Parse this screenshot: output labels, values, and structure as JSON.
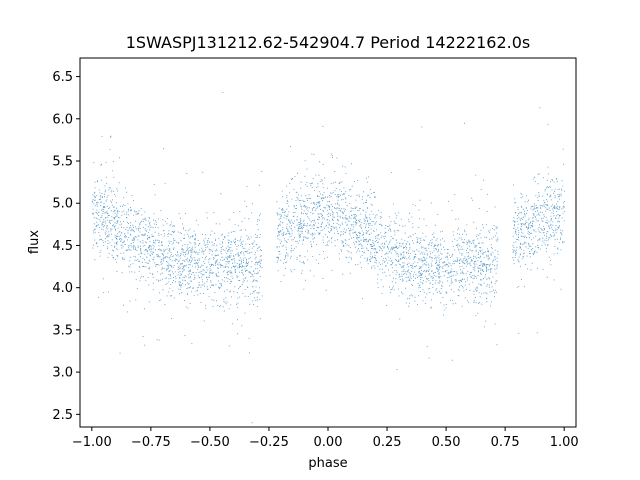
{
  "chart_data": {
    "type": "scatter",
    "title": "1SWASPJ131212.62-542904.7 Period 14222162.0s",
    "xlabel": "phase",
    "ylabel": "flux",
    "xlim": [
      -1.05,
      1.05
    ],
    "ylim": [
      2.35,
      6.72
    ],
    "xticks": [
      "-1.00",
      "-0.75",
      "-0.50",
      "-0.25",
      "0.00",
      "0.25",
      "0.50",
      "0.75",
      "1.00"
    ],
    "yticks": [
      "2.5",
      "3.0",
      "3.5",
      "4.0",
      "4.5",
      "5.0",
      "5.5",
      "6.0",
      "6.5"
    ],
    "grid": false,
    "marker_color": "#1f77b4",
    "series": [
      {
        "profile": {
          "phase": [
            0.0,
            0.05,
            0.1,
            0.15,
            0.2,
            0.25,
            0.3,
            0.35,
            0.4,
            0.45,
            0.5,
            0.55,
            0.6,
            0.65,
            0.7,
            0.75,
            0.8,
            0.85,
            0.9,
            0.95,
            1.0
          ],
          "flux": [
            4.85,
            4.82,
            4.75,
            4.62,
            4.55,
            4.48,
            4.38,
            4.33,
            4.3,
            4.28,
            4.25,
            4.27,
            4.3,
            4.28,
            4.25,
            4.55,
            4.65,
            4.72,
            4.8,
            4.87,
            4.85
          ]
        },
        "gaps": [
          [
            -0.28,
            -0.22
          ],
          [
            0.72,
            0.78
          ]
        ]
      }
    ]
  }
}
